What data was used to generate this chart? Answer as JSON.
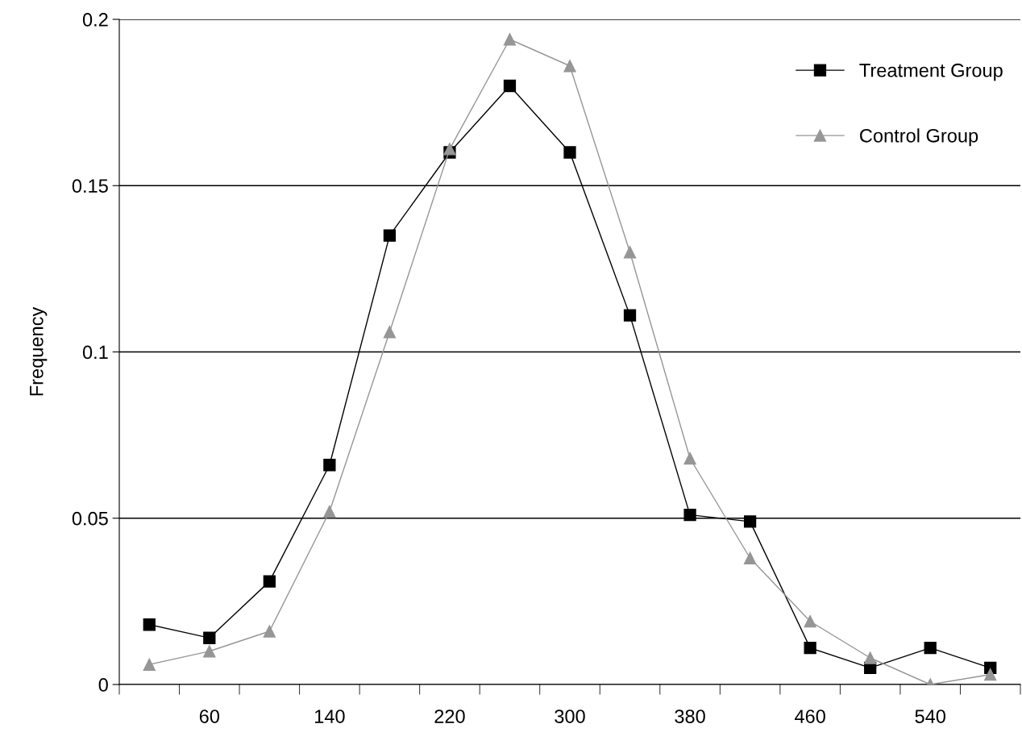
{
  "chart_data": {
    "type": "line",
    "ylabel": "Frequency",
    "categories": [
      null,
      "60",
      null,
      "140",
      null,
      "220",
      null,
      "300",
      null,
      "380",
      null,
      "460",
      null,
      "540",
      null
    ],
    "series": [
      {
        "name": "Treatment Group",
        "color": "#000000",
        "marker": "square",
        "values": [
          0.018,
          0.014,
          0.031,
          0.066,
          0.135,
          0.16,
          0.18,
          0.16,
          0.111,
          0.051,
          0.049,
          0.011,
          0.005,
          0.011,
          0.005
        ]
      },
      {
        "name": "Control Group",
        "color": "#969696",
        "marker": "triangle",
        "values": [
          0.006,
          0.01,
          0.016,
          0.052,
          0.106,
          0.161,
          0.194,
          0.186,
          0.13,
          0.068,
          0.038,
          0.019,
          0.008,
          0,
          0.003
        ]
      }
    ],
    "ylim": [
      0,
      0.2
    ],
    "yticks": [
      0,
      0.05,
      0.1,
      0.15,
      0.2
    ],
    "grid": "y",
    "legend": "top right",
    "line_style": "solid"
  }
}
